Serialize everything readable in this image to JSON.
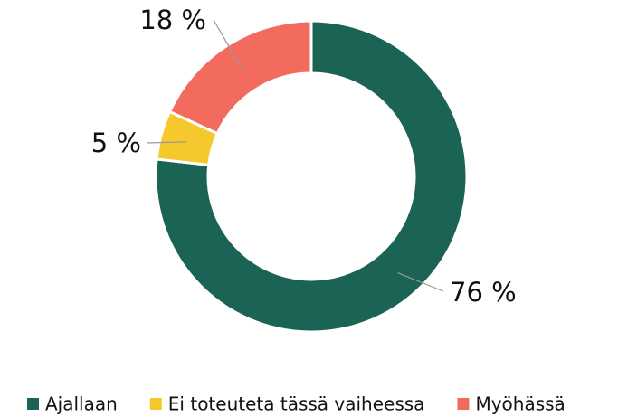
{
  "chart_data": {
    "type": "donut",
    "categories": [
      "Ajallaan",
      "Ei toteuteta tässä vaiheessa",
      "Myöhässä"
    ],
    "values": [
      76,
      5,
      18
    ],
    "value_labels": [
      "76 %",
      "5 %",
      "18 %"
    ],
    "colors": [
      "#1a6355",
      "#f5c92b",
      "#f26b5e"
    ],
    "legend": "bottom"
  }
}
